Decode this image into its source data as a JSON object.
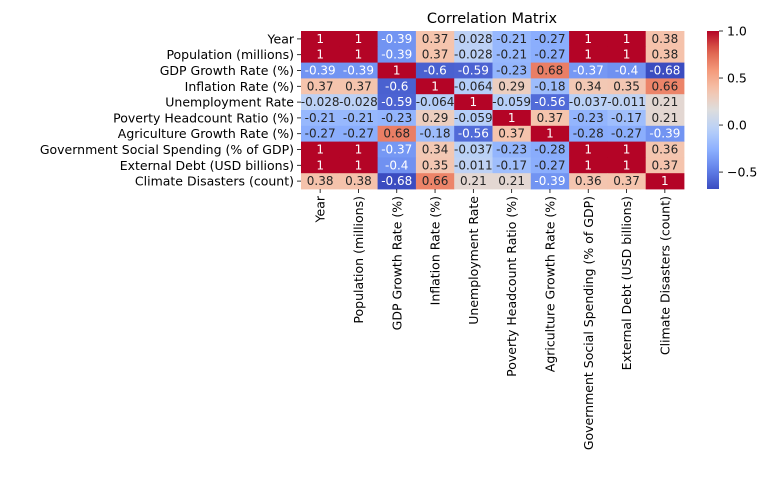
{
  "chart_data": {
    "type": "heatmap",
    "title": "Correlation Matrix",
    "variables": [
      "Year",
      "Population (millions)",
      "GDP Growth Rate (%)",
      "Inflation Rate (%)",
      "Unemployment Rate",
      "Poverty Headcount Ratio (%)",
      "Agriculture Growth Rate (%)",
      "Government Social Spending (% of GDP)",
      "External Debt (USD billions)",
      "Climate Disasters (count)"
    ],
    "values": [
      [
        1,
        1,
        -0.39,
        0.37,
        -0.028,
        -0.21,
        -0.27,
        1,
        1,
        0.38
      ],
      [
        1,
        1,
        -0.39,
        0.37,
        -0.028,
        -0.21,
        -0.27,
        1,
        1,
        0.38
      ],
      [
        -0.39,
        -0.39,
        1,
        -0.6,
        -0.59,
        -0.23,
        0.68,
        -0.37,
        -0.4,
        -0.68
      ],
      [
        0.37,
        0.37,
        -0.6,
        1,
        -0.064,
        0.29,
        -0.18,
        0.34,
        0.35,
        0.66
      ],
      [
        -0.028,
        -0.028,
        -0.59,
        -0.064,
        1,
        -0.059,
        -0.56,
        -0.037,
        -0.011,
        0.21
      ],
      [
        -0.21,
        -0.21,
        -0.23,
        0.29,
        -0.059,
        1,
        0.37,
        -0.23,
        -0.17,
        0.21
      ],
      [
        -0.27,
        -0.27,
        0.68,
        -0.18,
        -0.56,
        0.37,
        1,
        -0.28,
        -0.27,
        -0.39
      ],
      [
        1,
        1,
        -0.37,
        0.34,
        -0.037,
        -0.23,
        -0.28,
        1,
        1,
        0.36
      ],
      [
        1,
        1,
        -0.4,
        0.35,
        -0.011,
        -0.17,
        -0.27,
        1,
        1,
        0.37
      ],
      [
        0.38,
        0.38,
        -0.68,
        0.66,
        0.21,
        0.21,
        -0.39,
        0.36,
        0.37,
        1
      ]
    ],
    "colormap": "coolwarm",
    "vmin": -0.68,
    "vmax": 1,
    "colorbar_ticks": [
      1.0,
      0.5,
      0.0,
      -0.5
    ],
    "colorbar_tick_labels": [
      "1.0",
      "0.5",
      "0.0",
      "−0.5"
    ],
    "annotations": true,
    "grid": false
  }
}
